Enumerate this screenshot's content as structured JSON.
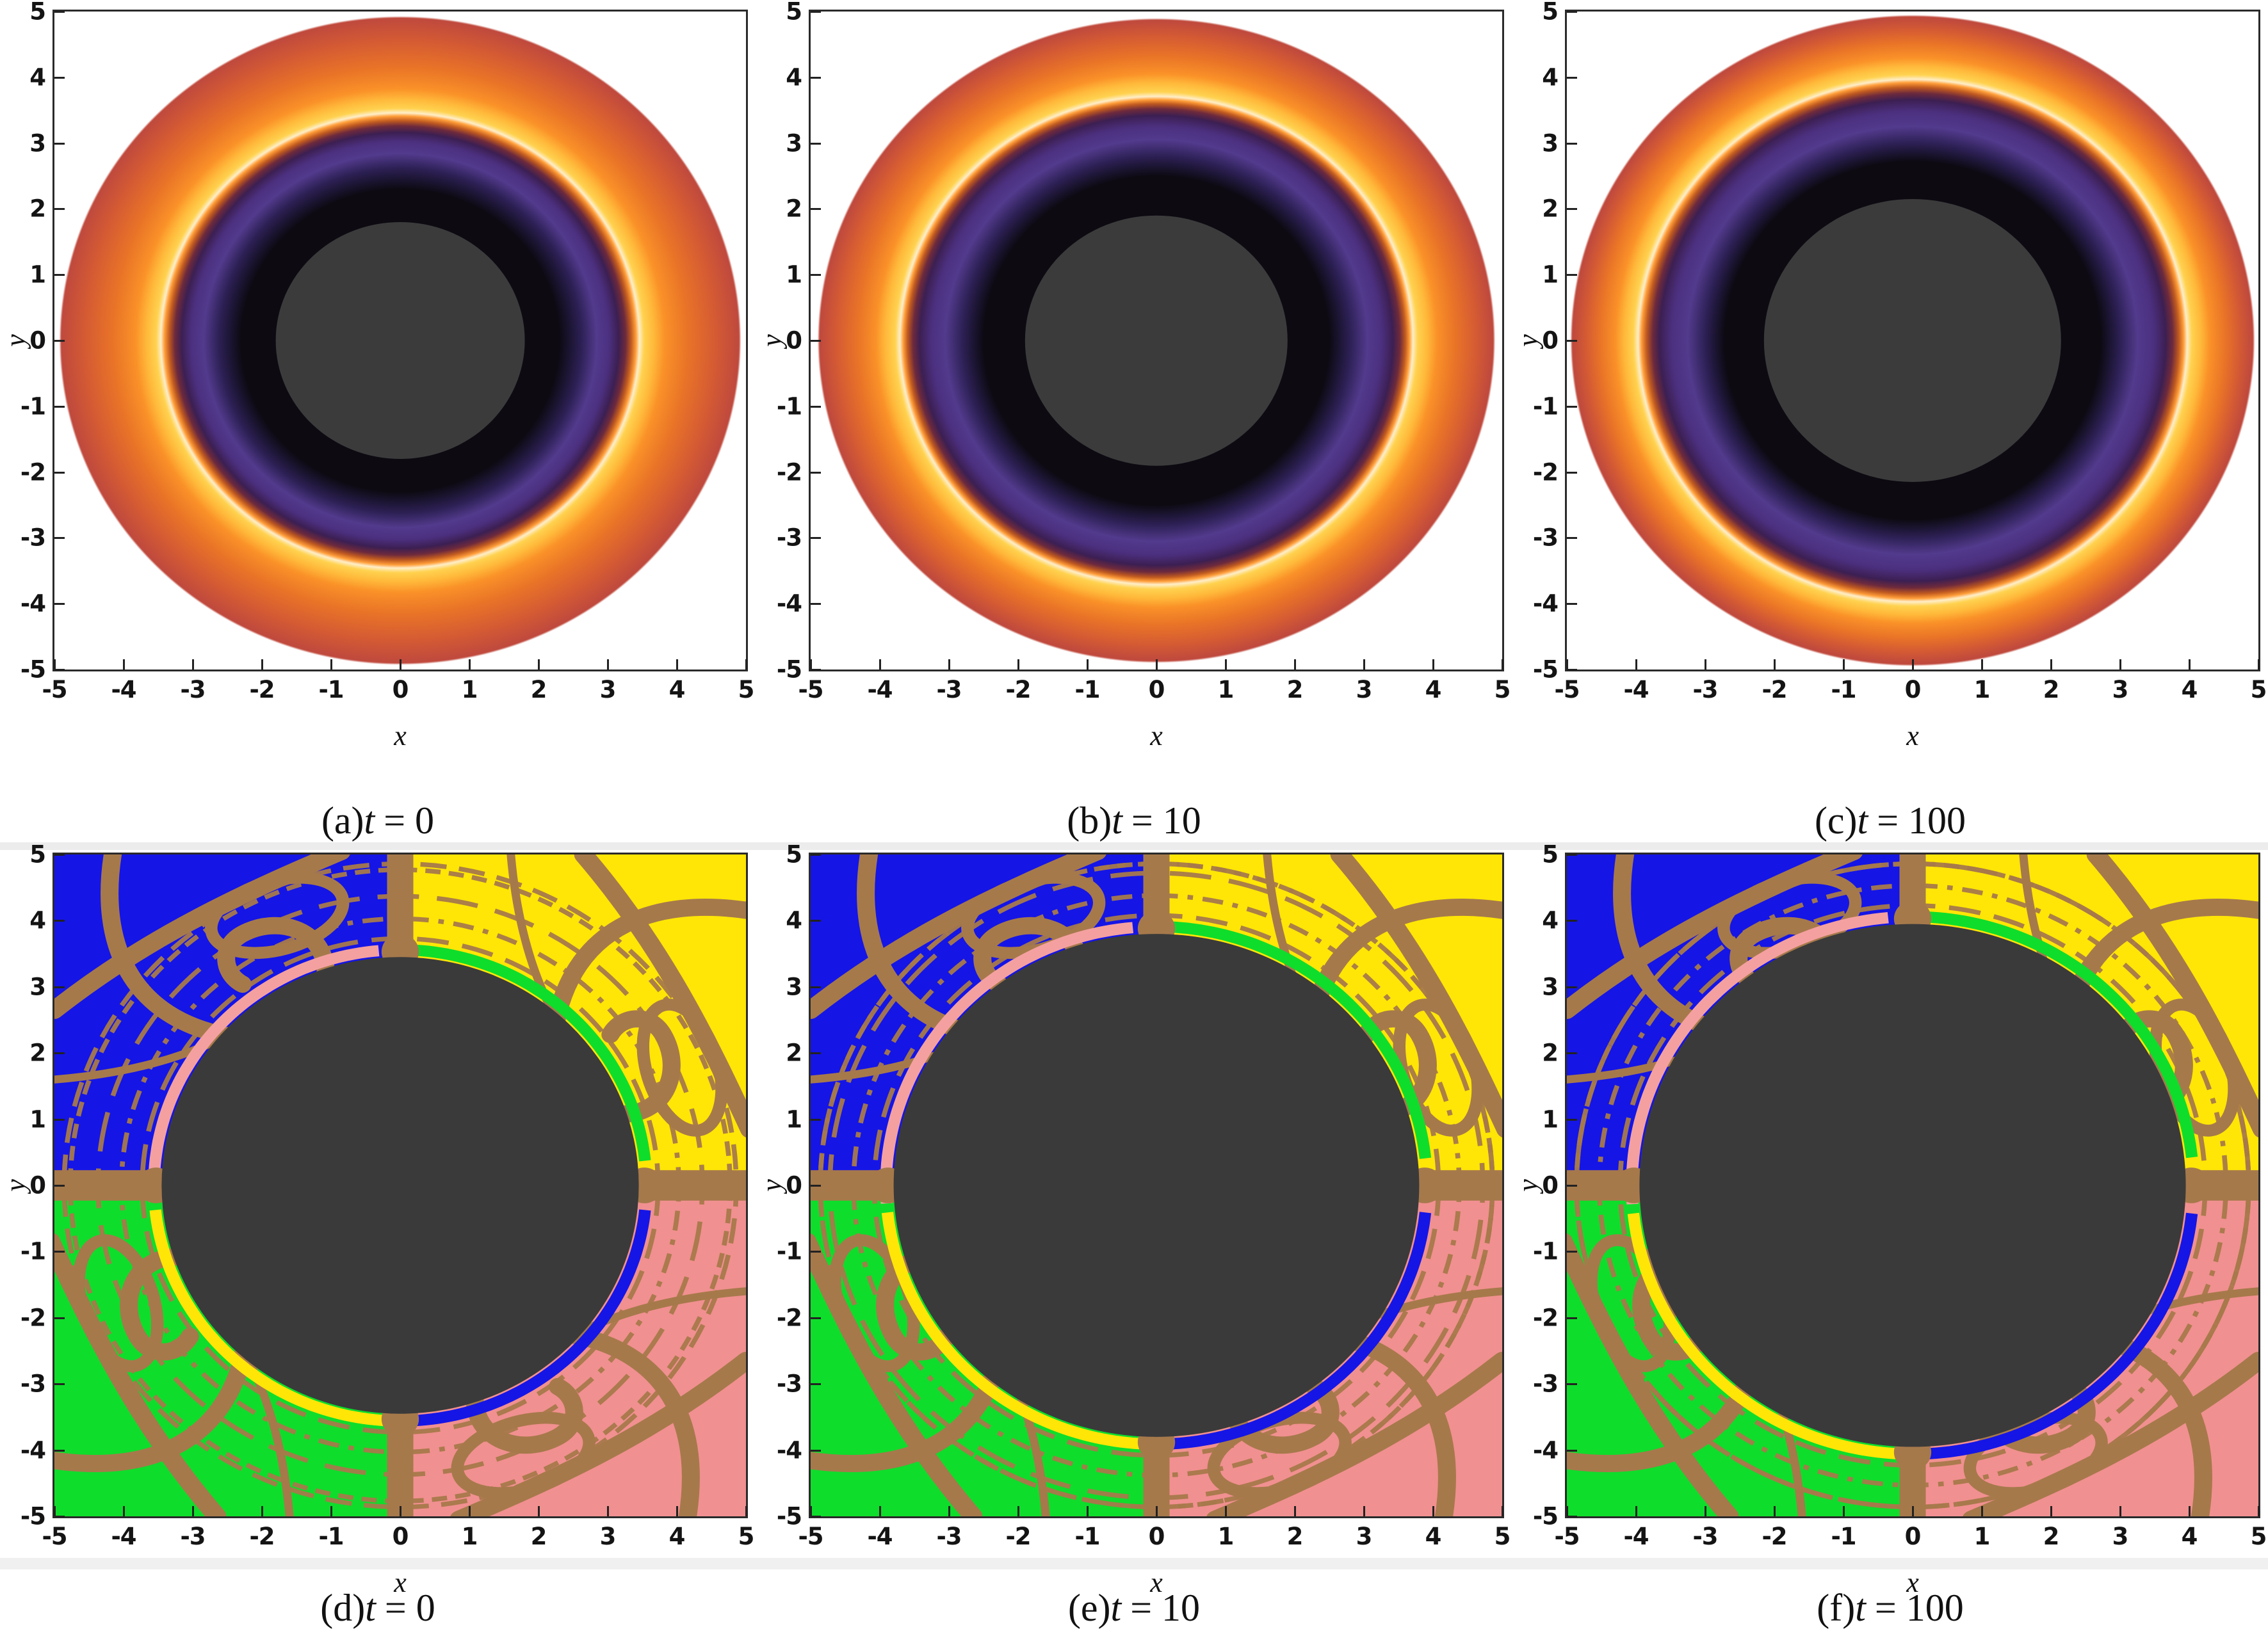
{
  "axes": {
    "xlabel": "x",
    "ylabel": "y",
    "xticks": [
      "-5",
      "-4",
      "-3",
      "-2",
      "-1",
      "0",
      "1",
      "2",
      "3",
      "4",
      "5"
    ],
    "yticks_top_to_bottom": [
      "5",
      "4",
      "3",
      "2",
      "1",
      "0",
      "-1",
      "-2",
      "-3",
      "-4",
      "-5"
    ]
  },
  "style": {
    "frame_color": "#2a2a2a",
    "tick_color": "#222222",
    "artifact_strip_color": "#dddddd"
  },
  "basin": {
    "colors": {
      "blue": "#1515e6",
      "yellow": "#ffe606",
      "green": "#0fdd2b",
      "salmon": "#f19090",
      "brown": "#a6794b",
      "disk": "#3a3a3a",
      "edge_pink": "#f4a0a0",
      "edge_green": "#0fdd2b",
      "edge_yellow": "#ffe606",
      "edge_blue": "#1515e6"
    },
    "edge_arcs": [
      {
        "color": "edge_pink",
        "a0": 95,
        "a1": 184
      },
      {
        "color": "edge_green",
        "a0": 6,
        "a1": 89
      },
      {
        "color": "edge_yellow",
        "a0": 186,
        "a1": 268
      },
      {
        "color": "edge_blue",
        "a0": 272,
        "a1": 354
      }
    ],
    "dashed_ring_offsets": [
      0.28,
      0.58,
      0.92,
      1.32,
      1.75
    ],
    "dash_patterns": [
      "46 20",
      "30 14 8 14",
      "60 26",
      "22 12",
      "38 18"
    ]
  },
  "panels": [
    {
      "id": "a",
      "kind": "intensity",
      "row": 0,
      "col": 0,
      "caption": {
        "label": "(a)",
        "var": "t",
        "rest": "= 0"
      },
      "shadow_radius": 1.8,
      "outer_radius": 4.9,
      "gradient": [
        [
          0,
          "#0d0a12"
        ],
        [
          2.3,
          "#0d0a12"
        ],
        [
          2.62,
          "#2c2054"
        ],
        [
          2.84,
          "#523a8c"
        ],
        [
          3.02,
          "#4c3080"
        ],
        [
          3.16,
          "#3c1f52"
        ],
        [
          3.26,
          "#6e2a3c"
        ],
        [
          3.34,
          "#c05a20"
        ],
        [
          3.41,
          "#ff9d38"
        ],
        [
          3.46,
          "#ffeec8"
        ],
        [
          3.53,
          "#ffd24f"
        ],
        [
          3.67,
          "#ffb83a"
        ],
        [
          3.83,
          "#fa9128"
        ],
        [
          4.15,
          "#e97427"
        ],
        [
          4.55,
          "#d55b33"
        ],
        [
          4.88,
          "#c04a3d"
        ]
      ]
    },
    {
      "id": "b",
      "kind": "intensity",
      "row": 0,
      "col": 1,
      "caption": {
        "label": "(b)",
        "var": "t",
        "rest": "= 10"
      },
      "shadow_radius": 1.9,
      "outer_radius": 4.87,
      "gradient": [
        [
          0,
          "#0d0a12"
        ],
        [
          2.5,
          "#0d0a12"
        ],
        [
          2.8,
          "#2c2054"
        ],
        [
          3.05,
          "#523a8c"
        ],
        [
          3.25,
          "#4c3080"
        ],
        [
          3.42,
          "#3c1f52"
        ],
        [
          3.52,
          "#6e2a3c"
        ],
        [
          3.6,
          "#c05a20"
        ],
        [
          3.66,
          "#ff9d38"
        ],
        [
          3.71,
          "#ffeec8"
        ],
        [
          3.78,
          "#ffd24f"
        ],
        [
          3.92,
          "#ffb83a"
        ],
        [
          4.06,
          "#fa9128"
        ],
        [
          4.32,
          "#e97427"
        ],
        [
          4.62,
          "#d55b33"
        ],
        [
          4.85,
          "#c04a3d"
        ]
      ]
    },
    {
      "id": "c",
      "kind": "intensity",
      "row": 0,
      "col": 2,
      "caption": {
        "label": "(c)",
        "var": "t",
        "rest": "= 100"
      },
      "shadow_radius": 2.15,
      "outer_radius": 4.92,
      "gradient": [
        [
          0,
          "#0d0a12"
        ],
        [
          2.72,
          "#0d0a12"
        ],
        [
          3.0,
          "#2c2054"
        ],
        [
          3.25,
          "#523a8c"
        ],
        [
          3.48,
          "#4c3080"
        ],
        [
          3.66,
          "#3c1f52"
        ],
        [
          3.76,
          "#6e2a3c"
        ],
        [
          3.85,
          "#c05a20"
        ],
        [
          3.92,
          "#ff9d38"
        ],
        [
          3.97,
          "#ffeec8"
        ],
        [
          4.04,
          "#ffd24f"
        ],
        [
          4.17,
          "#ffb83a"
        ],
        [
          4.3,
          "#fa9128"
        ],
        [
          4.52,
          "#e97427"
        ],
        [
          4.72,
          "#d55b33"
        ],
        [
          4.9,
          "#c04a3d"
        ]
      ]
    },
    {
      "id": "d",
      "kind": "basin",
      "row": 1,
      "col": 0,
      "caption": {
        "label": "(d)",
        "var": "t",
        "rest": "= 0"
      },
      "disk_radius": 3.45
    },
    {
      "id": "e",
      "kind": "basin",
      "row": 1,
      "col": 1,
      "caption": {
        "label": "(e)",
        "var": "t",
        "rest": "= 10"
      },
      "disk_radius": 3.8
    },
    {
      "id": "f",
      "kind": "basin",
      "row": 1,
      "col": 2,
      "caption": {
        "label": "(f)",
        "var": "t",
        "rest": "= 100"
      },
      "disk_radius": 3.95
    }
  ],
  "chart_data": [
    {
      "type": "heatmap",
      "panel": "(a)",
      "caption": "(a) t = 0",
      "xlabel": "x",
      "ylabel": "y",
      "xlim": [
        -5,
        5
      ],
      "ylim": [
        -5,
        5
      ],
      "content": "black-hole image intensity map, sunset colormap: central dark-gray shadow disk radius ~1.8, black/purple glow region out to ~3.2, thin white photon ring at radius ~3.45, bright yellow-orange ring 3.5-3.7, orange emission disk fading to dark red at outer radius ~4.9, white background outside"
    },
    {
      "type": "heatmap",
      "panel": "(b)",
      "caption": "(b) t = 10",
      "xlabel": "x",
      "ylabel": "y",
      "xlim": [
        -5,
        5
      ],
      "ylim": [
        -5,
        5
      ],
      "content": "same black-hole image at t=10: shadow disk radius ~1.9, white photon ring at ~3.7, bright band 3.78-3.95, emission disk outer radius ~4.87"
    },
    {
      "type": "heatmap",
      "panel": "(c)",
      "caption": "(c) t = 100",
      "xlabel": "x",
      "ylabel": "y",
      "xlim": [
        -5,
        5
      ],
      "ylim": [
        -5,
        5
      ],
      "content": "same black-hole image at t=100: shadow disk radius ~2.15, white photon ring at ~3.96, bright band 4.04-4.22, emission disk outer radius ~4.92"
    },
    {
      "type": "heatmap",
      "panel": "(d)",
      "caption": "(d) t = 0",
      "xlabel": "x",
      "ylabel": "y",
      "xlim": [
        -5,
        5
      ],
      "ylim": [
        -5,
        5
      ],
      "content": "escape-basin map: four quadrant basins (blue upper-left, yellow upper-right, green lower-left, salmon lower-right), brown fractal boundary bands and arcs including bands along both axes, central absorbed dark-gray disk radius ~3.45, thin rings hugging the disk: pink (UL), green (UR), yellow (LL), blue (LR)"
    },
    {
      "type": "heatmap",
      "panel": "(e)",
      "caption": "(e) t = 10",
      "xlabel": "x",
      "ylabel": "y",
      "xlim": [
        -5,
        5
      ],
      "ylim": [
        -5,
        5
      ],
      "content": "same basin map at t=10 with larger central dark disk radius ~3.8; same quadrant basin colors, brown fractal boundaries and thin colored rings at the disk edge"
    },
    {
      "type": "heatmap",
      "panel": "(f)",
      "caption": "(f) t = 100",
      "xlabel": "x",
      "ylabel": "y",
      "xlim": [
        -5,
        5
      ],
      "ylim": [
        -5,
        5
      ],
      "content": "same basin map at t=100 with central dark disk radius ~3.95; quadrant basins reduced to outer corners, brown fractal boundaries and thin colored rings at the disk edge"
    }
  ],
  "layout_note_values": {
    "times": [
      "0",
      "10",
      "100"
    ]
  }
}
